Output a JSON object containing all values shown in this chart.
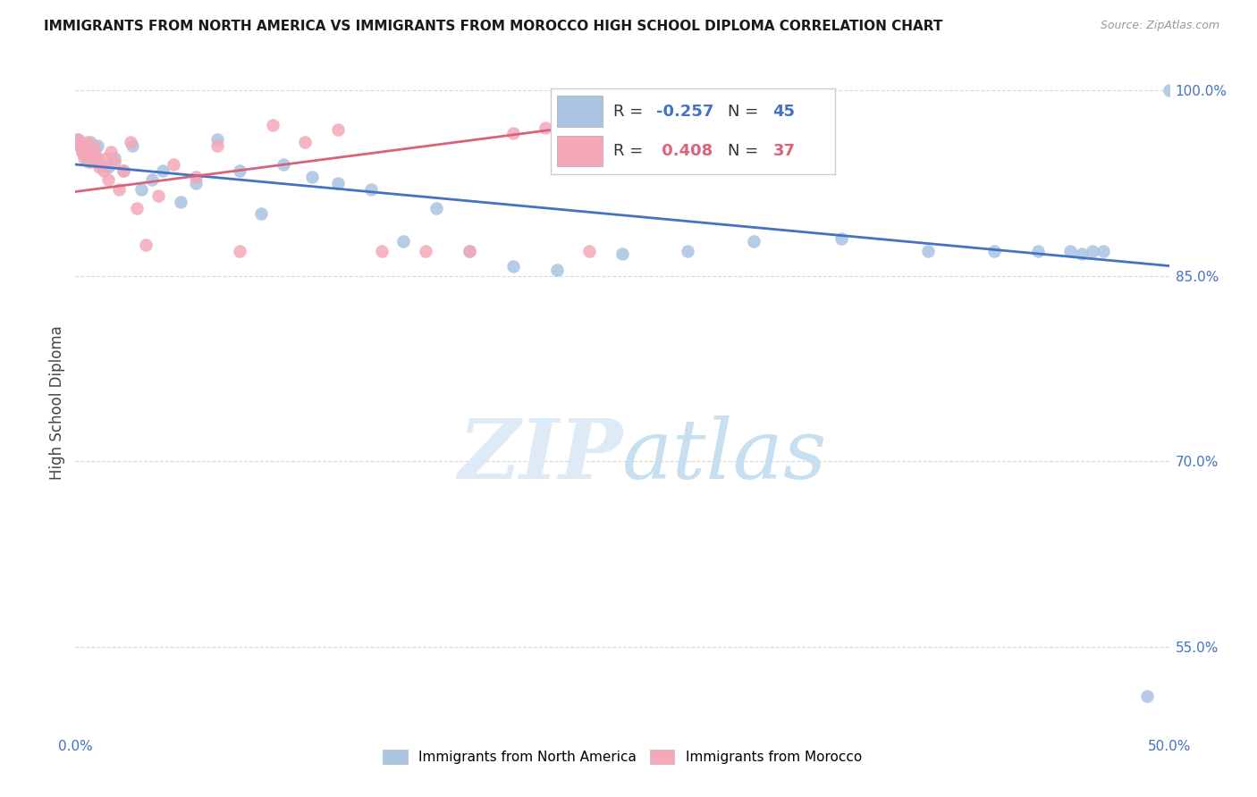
{
  "title": "IMMIGRANTS FROM NORTH AMERICA VS IMMIGRANTS FROM MOROCCO HIGH SCHOOL DIPLOMA CORRELATION CHART",
  "source": "Source: ZipAtlas.com",
  "ylabel": "High School Diploma",
  "xlim": [
    0.0,
    0.5
  ],
  "ylim": [
    0.48,
    1.015
  ],
  "ytick_positions": [
    1.0,
    0.85,
    0.7,
    0.55
  ],
  "ytick_labels": [
    "100.0%",
    "85.0%",
    "70.0%",
    "55.0%"
  ],
  "blue_R": -0.257,
  "blue_N": 45,
  "pink_R": 0.408,
  "pink_N": 37,
  "blue_color": "#aac4e2",
  "pink_color": "#f4a8b8",
  "blue_line_color": "#4472c4",
  "pink_line_color": "#d9637a",
  "legend_label_blue": "Immigrants from North America",
  "legend_label_pink": "Immigrants from Morocco",
  "blue_x": [
    0.001,
    0.002,
    0.003,
    0.004,
    0.005,
    0.006,
    0.007,
    0.008,
    0.009,
    0.01,
    0.012,
    0.015,
    0.018,
    0.022,
    0.026,
    0.03,
    0.035,
    0.04,
    0.048,
    0.055,
    0.065,
    0.075,
    0.085,
    0.095,
    0.108,
    0.12,
    0.135,
    0.15,
    0.165,
    0.18,
    0.2,
    0.22,
    0.25,
    0.28,
    0.31,
    0.35,
    0.39,
    0.42,
    0.44,
    0.455,
    0.46,
    0.465,
    0.47,
    0.49,
    0.5
  ],
  "blue_y": [
    0.96,
    0.955,
    0.95,
    0.948,
    0.945,
    0.942,
    0.958,
    0.952,
    0.945,
    0.955,
    0.94,
    0.938,
    0.945,
    0.935,
    0.955,
    0.92,
    0.928,
    0.935,
    0.91,
    0.925,
    0.96,
    0.935,
    0.9,
    0.94,
    0.93,
    0.925,
    0.92,
    0.878,
    0.905,
    0.87,
    0.858,
    0.855,
    0.868,
    0.87,
    0.878,
    0.88,
    0.87,
    0.87,
    0.87,
    0.87,
    0.868,
    0.87,
    0.87,
    0.51,
    1.0
  ],
  "pink_x": [
    0.001,
    0.002,
    0.003,
    0.004,
    0.005,
    0.006,
    0.007,
    0.008,
    0.009,
    0.01,
    0.011,
    0.012,
    0.013,
    0.014,
    0.015,
    0.016,
    0.018,
    0.02,
    0.022,
    0.025,
    0.028,
    0.032,
    0.038,
    0.045,
    0.055,
    0.065,
    0.075,
    0.09,
    0.105,
    0.12,
    0.14,
    0.16,
    0.18,
    0.2,
    0.215,
    0.225,
    0.235
  ],
  "pink_y": [
    0.96,
    0.955,
    0.95,
    0.945,
    0.958,
    0.948,
    0.942,
    0.955,
    0.95,
    0.945,
    0.938,
    0.94,
    0.935,
    0.945,
    0.928,
    0.95,
    0.942,
    0.92,
    0.935,
    0.958,
    0.905,
    0.875,
    0.915,
    0.94,
    0.93,
    0.955,
    0.87,
    0.972,
    0.958,
    0.968,
    0.87,
    0.87,
    0.87,
    0.965,
    0.97,
    0.975,
    0.87
  ],
  "blue_trend_x": [
    0.0,
    0.5
  ],
  "blue_trend_y": [
    0.94,
    0.858
  ],
  "pink_trend_x": [
    0.0,
    0.235
  ],
  "pink_trend_y": [
    0.918,
    0.972
  ],
  "background_color": "#ffffff",
  "grid_color": "#d8d8d8"
}
